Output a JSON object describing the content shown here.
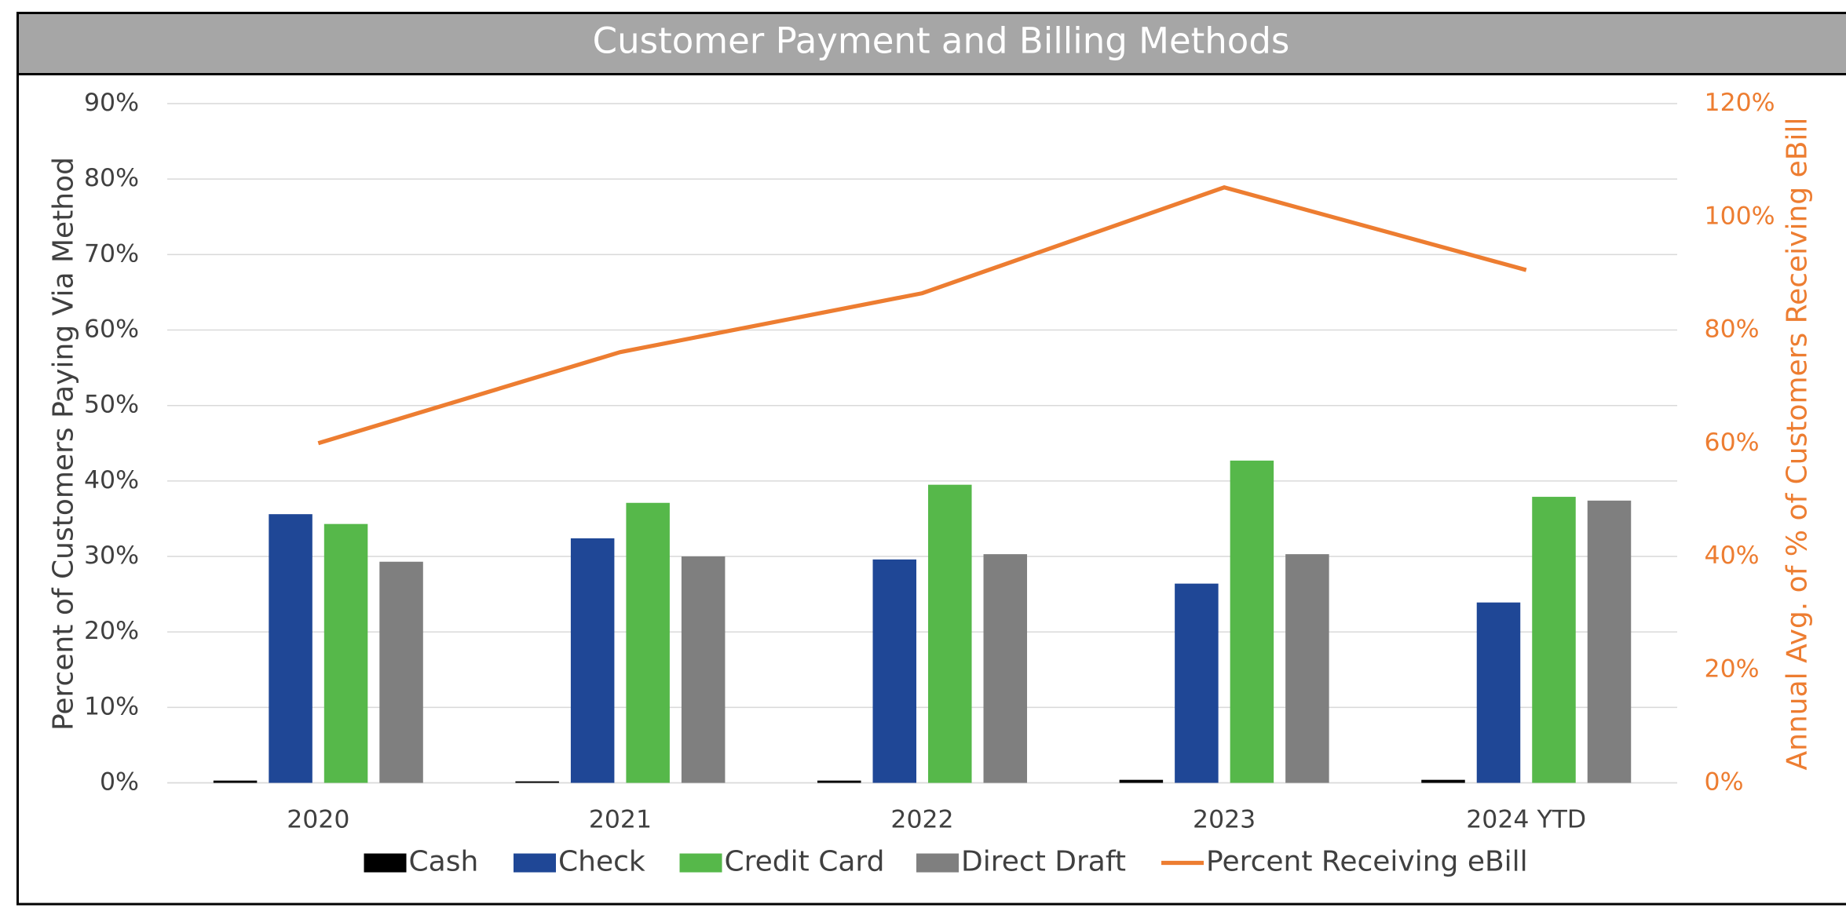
{
  "chart_data": {
    "type": "bar",
    "title": "Customer Payment and Billing Methods",
    "y_label": "Percent of Customers Paying Via Method",
    "y2_label": "Annual Avg. of % of Customers Receiving eBill",
    "categories": [
      "2020",
      "2021",
      "2022",
      "2023",
      "2024 YTD"
    ],
    "series": [
      {
        "name": "Cash",
        "color": "#000000",
        "type": "bar",
        "values": [
          0.3,
          0.2,
          0.3,
          0.4,
          0.4
        ]
      },
      {
        "name": "Check",
        "color": "#1f4796",
        "type": "bar",
        "values": [
          35.6,
          32.4,
          29.6,
          26.4,
          23.9
        ]
      },
      {
        "name": "Credit Card",
        "color": "#56b84a",
        "type": "bar",
        "values": [
          34.3,
          37.1,
          39.5,
          42.7,
          37.9
        ]
      },
      {
        "name": "Direct Draft",
        "color": "#7f7f7f",
        "type": "bar",
        "values": [
          29.3,
          30.0,
          30.3,
          30.3,
          37.4
        ]
      },
      {
        "name": "Percent Receiving eBill",
        "color": "#ed7d31",
        "type": "line",
        "axis": "y2",
        "values": [
          60,
          76.1,
          86.5,
          105.2,
          90.6
        ]
      }
    ],
    "ylim": [
      0,
      90
    ],
    "yticks": [
      {
        "value": 0,
        "label": "0%"
      },
      {
        "value": 10,
        "label": "10%"
      },
      {
        "value": 20,
        "label": "20%"
      },
      {
        "value": 30,
        "label": "30%"
      },
      {
        "value": 40,
        "label": "40%"
      },
      {
        "value": 50,
        "label": "50%"
      },
      {
        "value": 60,
        "label": "60%"
      },
      {
        "value": 70,
        "label": "70%"
      },
      {
        "value": 80,
        "label": "80%"
      },
      {
        "value": 90,
        "label": "90%"
      }
    ],
    "y2lim": [
      0,
      120
    ],
    "y2ticks": [
      {
        "value": 0,
        "label": "0%"
      },
      {
        "value": 20,
        "label": "20%"
      },
      {
        "value": 40,
        "label": "40%"
      },
      {
        "value": 60,
        "label": "60%"
      },
      {
        "value": 80,
        "label": "80%"
      },
      {
        "value": 100,
        "label": "100%"
      },
      {
        "value": 120,
        "label": "120%"
      }
    ],
    "grid": true,
    "legend": "bottom"
  }
}
